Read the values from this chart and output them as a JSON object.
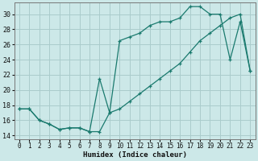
{
  "xlabel": "Humidex (Indice chaleur)",
  "background_color": "#cce8e8",
  "grid_color": "#aacccc",
  "line_color": "#1a7a6e",
  "xlim": [
    -0.5,
    23.5
  ],
  "ylim": [
    13.5,
    31.5
  ],
  "xticks": [
    0,
    1,
    2,
    3,
    4,
    5,
    6,
    7,
    8,
    9,
    10,
    11,
    12,
    13,
    14,
    15,
    16,
    17,
    18,
    19,
    20,
    21,
    22,
    23
  ],
  "yticks": [
    14,
    16,
    18,
    20,
    22,
    24,
    26,
    28,
    30
  ],
  "line1_x": [
    0,
    1,
    2,
    3,
    4,
    5,
    6,
    7,
    8,
    9,
    10,
    11,
    12,
    13,
    14,
    15,
    16,
    17,
    18,
    19,
    20,
    21,
    22,
    23
  ],
  "line1_y": [
    17.5,
    17.5,
    16.0,
    15.5,
    14.8,
    15.0,
    15.0,
    14.5,
    21.5,
    17.0,
    26.5,
    27.0,
    27.5,
    28.5,
    29.0,
    29.0,
    29.5,
    31.0,
    31.0,
    30.0,
    30.0,
    24.0,
    29.0,
    22.5
  ],
  "line2_x": [
    0,
    1,
    2,
    3,
    4,
    5,
    6,
    7,
    8,
    9,
    10,
    11,
    12,
    13,
    14,
    15,
    16,
    17,
    18,
    19,
    20,
    21,
    22,
    23
  ],
  "line2_y": [
    17.5,
    17.5,
    16.0,
    15.5,
    14.8,
    15.0,
    15.0,
    14.5,
    14.5,
    17.0,
    17.5,
    18.5,
    19.5,
    20.5,
    21.5,
    22.5,
    23.5,
    25.0,
    26.5,
    27.5,
    28.5,
    29.5,
    30.0,
    22.5
  ]
}
